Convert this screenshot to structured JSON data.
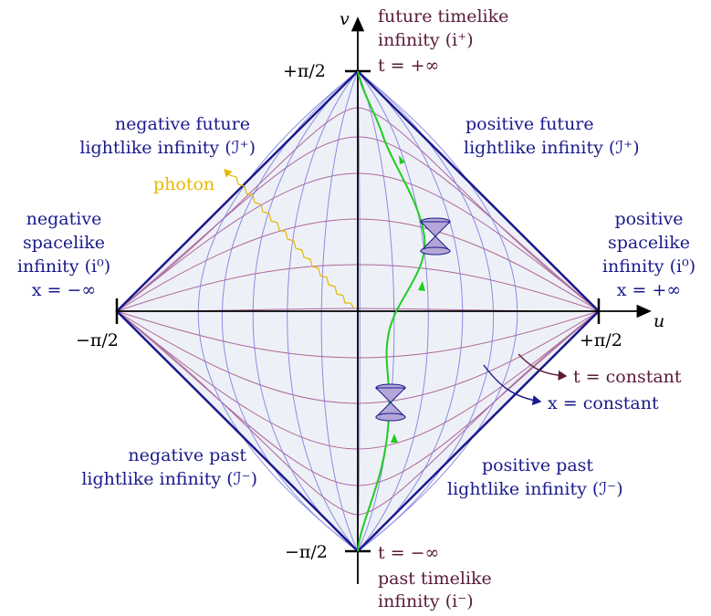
{
  "axes": {
    "u_label": "u",
    "v_label": "v",
    "v_top_tick": "+π/2",
    "v_bottom_tick": "−π/2",
    "u_left_tick": "−π/2",
    "u_right_tick": "+π/2"
  },
  "regions": {
    "future_timelike": [
      "future timelike",
      "infinity (i⁺)",
      "t = +∞"
    ],
    "past_timelike": [
      "t = −∞",
      "past timelike",
      "infinity (i⁻)"
    ],
    "neg_future_lightlike": [
      "negative future",
      "lightlike infinity (ℐ⁺)"
    ],
    "pos_future_lightlike": [
      "positive future",
      "lightlike infinity (ℐ⁺)"
    ],
    "neg_past_lightlike": [
      "negative past",
      "lightlike infinity (ℐ⁻)"
    ],
    "pos_past_lightlike": [
      "positive past",
      "lightlike infinity (ℐ⁻)"
    ],
    "neg_spacelike": [
      "negative",
      "spacelike",
      "infinity (i⁰)",
      "x = −∞"
    ],
    "pos_spacelike": [
      "positive",
      "spacelike",
      "infinity (i⁰)",
      "x = +∞"
    ]
  },
  "annotations": {
    "photon": "photon",
    "t_constant": "t = constant",
    "x_constant": "x = constant"
  },
  "colors": {
    "diamond_fill": "#eef0f7",
    "diamond_edge": "#1a1a8c",
    "x_const_lines": "#7a7ae0",
    "t_const_lines": "#a0508a",
    "worldline": "#22cc22",
    "photon": "#e6b800",
    "cone": "#b4a6d6",
    "region_text": "#1a1a8c",
    "infinity_text": "#5a1a3a"
  }
}
